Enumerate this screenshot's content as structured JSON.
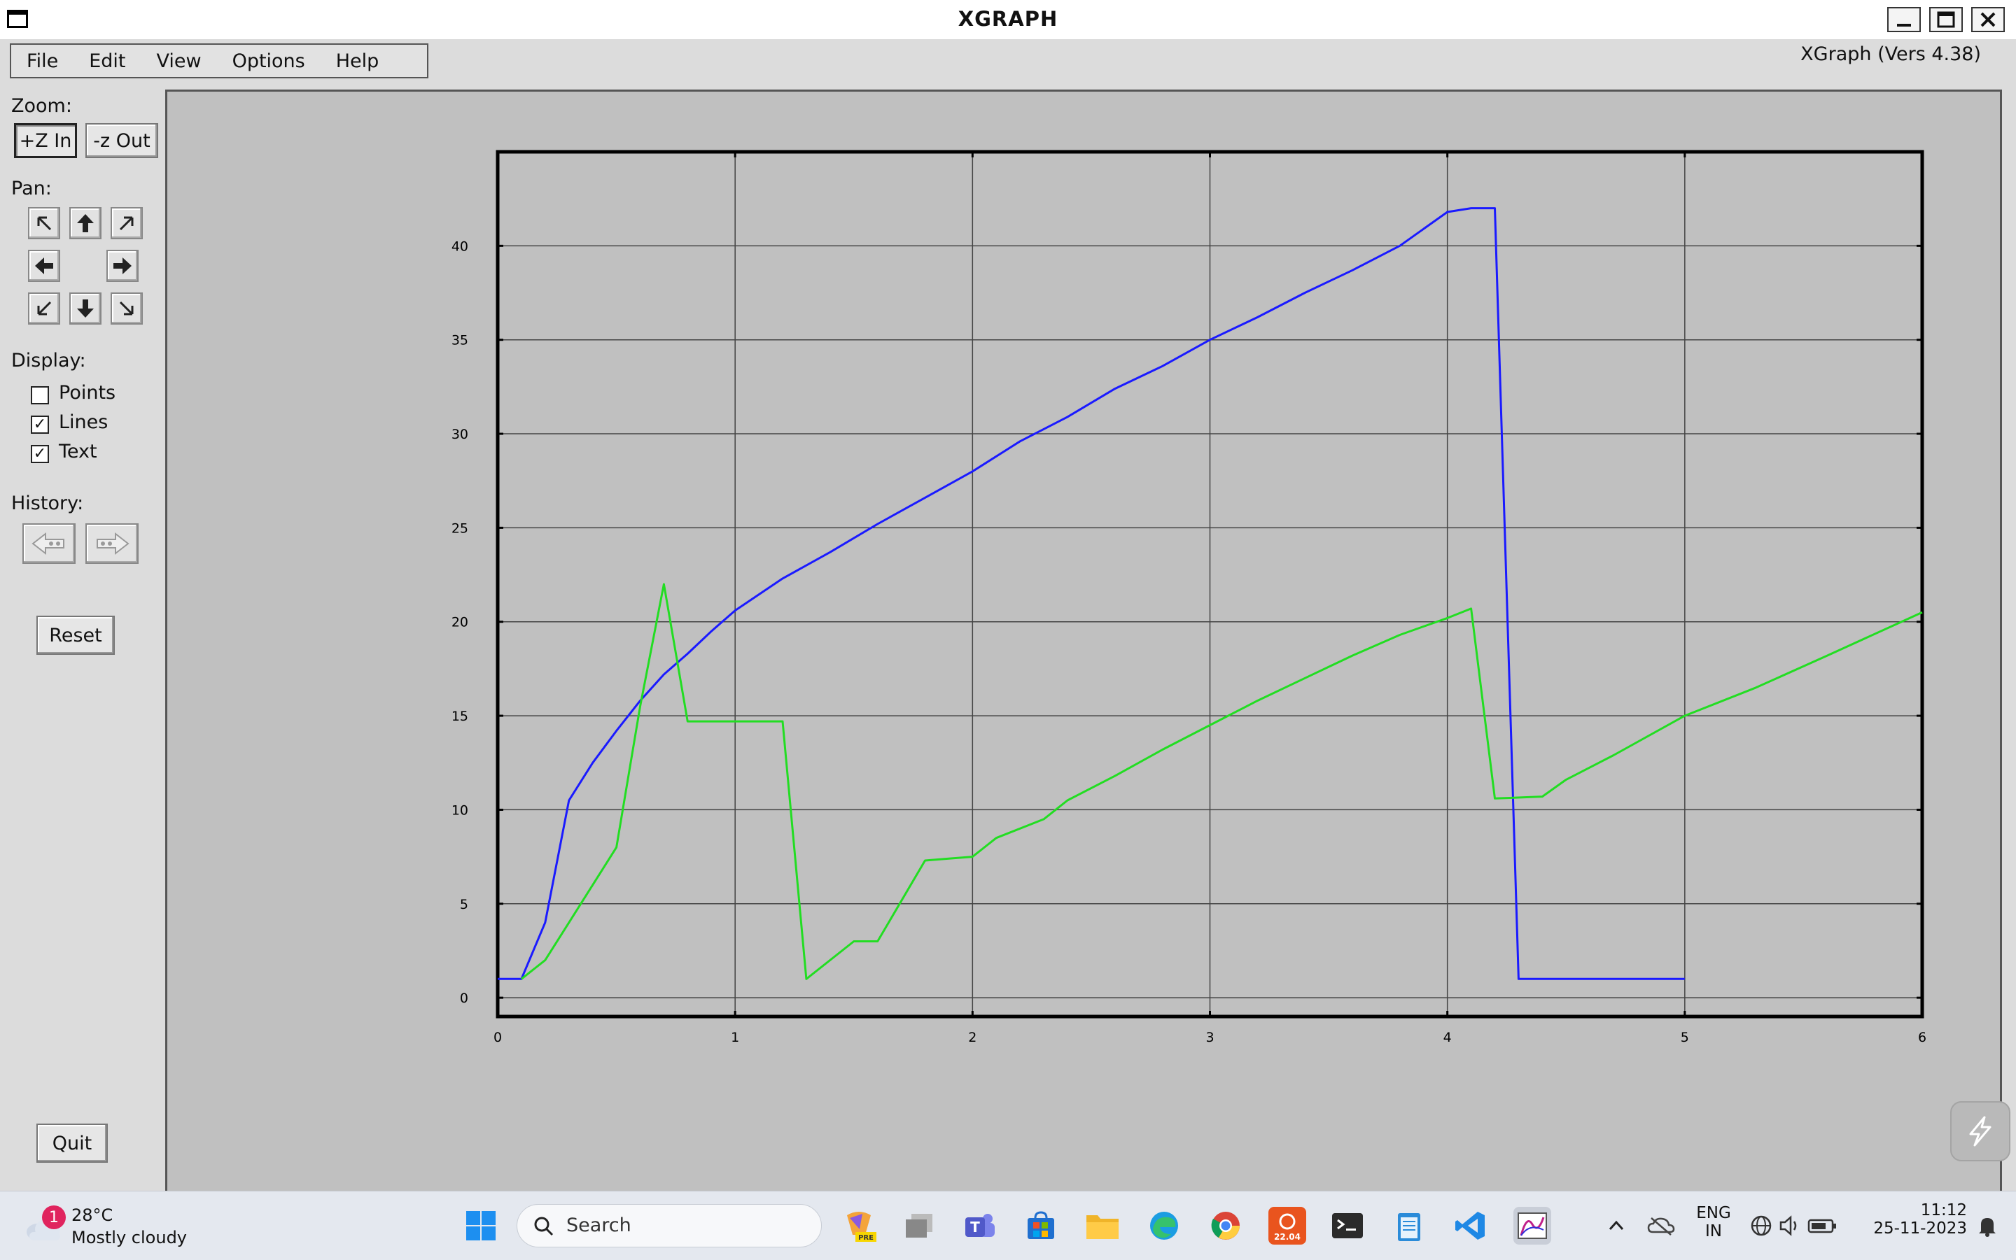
{
  "window": {
    "title": "XGRAPH",
    "controls": [
      "minimize",
      "maximize",
      "close"
    ]
  },
  "menubar": {
    "items": [
      "File",
      "Edit",
      "View",
      "Options",
      "Help"
    ]
  },
  "version_label": "XGraph (Vers 4.38)",
  "sidebar": {
    "zoom_label": "Zoom:",
    "zoom_in": "+Z In",
    "zoom_out": "-z Out",
    "pan_label": "Pan:",
    "display_label": "Display:",
    "display_options": [
      {
        "label": "Points",
        "checked": false
      },
      {
        "label": "Lines",
        "checked": true
      },
      {
        "label": "Text",
        "checked": true
      }
    ],
    "history_label": "History:",
    "reset": "Reset",
    "quit": "Quit"
  },
  "chart_data": {
    "type": "line",
    "title": "",
    "xlabel": "",
    "ylabel": "",
    "xlim": [
      0,
      6
    ],
    "ylim": [
      -1,
      45
    ],
    "x_ticks": [
      0,
      1,
      2,
      3,
      4,
      5,
      6
    ],
    "y_ticks": [
      0,
      5,
      10,
      15,
      20,
      25,
      30,
      35,
      40
    ],
    "grid": true,
    "series": [
      {
        "color": "#1a1aff",
        "points": [
          [
            0,
            1
          ],
          [
            0.1,
            1
          ],
          [
            0.2,
            4
          ],
          [
            0.3,
            10.5
          ],
          [
            0.4,
            12.5
          ],
          [
            0.5,
            14.2
          ],
          [
            0.6,
            15.8
          ],
          [
            0.7,
            17.2
          ],
          [
            0.8,
            18.3
          ],
          [
            0.9,
            19.5
          ],
          [
            1.0,
            20.6
          ],
          [
            1.2,
            22.3
          ],
          [
            1.4,
            23.7
          ],
          [
            1.6,
            25.2
          ],
          [
            1.8,
            26.6
          ],
          [
            2.0,
            28.0
          ],
          [
            2.2,
            29.6
          ],
          [
            2.4,
            30.9
          ],
          [
            2.6,
            32.4
          ],
          [
            2.8,
            33.6
          ],
          [
            3.0,
            35.0
          ],
          [
            3.2,
            36.2
          ],
          [
            3.4,
            37.5
          ],
          [
            3.6,
            38.7
          ],
          [
            3.8,
            40.0
          ],
          [
            4.0,
            41.8
          ],
          [
            4.1,
            42.0
          ],
          [
            4.2,
            42.0
          ],
          [
            4.3,
            1
          ],
          [
            5.0,
            1
          ]
        ]
      },
      {
        "color": "#22dd22",
        "points": [
          [
            0.1,
            1
          ],
          [
            0.2,
            2
          ],
          [
            0.3,
            4
          ],
          [
            0.4,
            6
          ],
          [
            0.5,
            8
          ],
          [
            0.6,
            15.5
          ],
          [
            0.7,
            22
          ],
          [
            0.8,
            14.7
          ],
          [
            1.2,
            14.7
          ],
          [
            1.3,
            1
          ],
          [
            1.5,
            3
          ],
          [
            1.6,
            3
          ],
          [
            1.8,
            7.3
          ],
          [
            1.9,
            7.4
          ],
          [
            2.0,
            7.5
          ],
          [
            2.1,
            8.5
          ],
          [
            2.3,
            9.5
          ],
          [
            2.4,
            10.5
          ],
          [
            2.6,
            11.8
          ],
          [
            2.8,
            13.2
          ],
          [
            3.0,
            14.5
          ],
          [
            3.2,
            15.8
          ],
          [
            3.4,
            17
          ],
          [
            3.6,
            18.2
          ],
          [
            3.8,
            19.3
          ],
          [
            4.0,
            20.2
          ],
          [
            4.1,
            20.7
          ],
          [
            4.2,
            10.6
          ],
          [
            4.4,
            10.7
          ],
          [
            4.5,
            11.6
          ],
          [
            4.7,
            12.9
          ],
          [
            5.0,
            15
          ],
          [
            5.3,
            16.5
          ],
          [
            5.6,
            18.2
          ],
          [
            6.0,
            20.5
          ]
        ]
      }
    ]
  },
  "taskbar": {
    "weather_badge": "1",
    "temperature": "28°C",
    "condition": "Mostly cloudy",
    "search_label": "Search",
    "badge_pre": "PRE",
    "ubuntu_version": "22.04",
    "lang_top": "ENG",
    "lang_bottom": "IN",
    "time": "11:12",
    "date": "25-11-2023"
  }
}
